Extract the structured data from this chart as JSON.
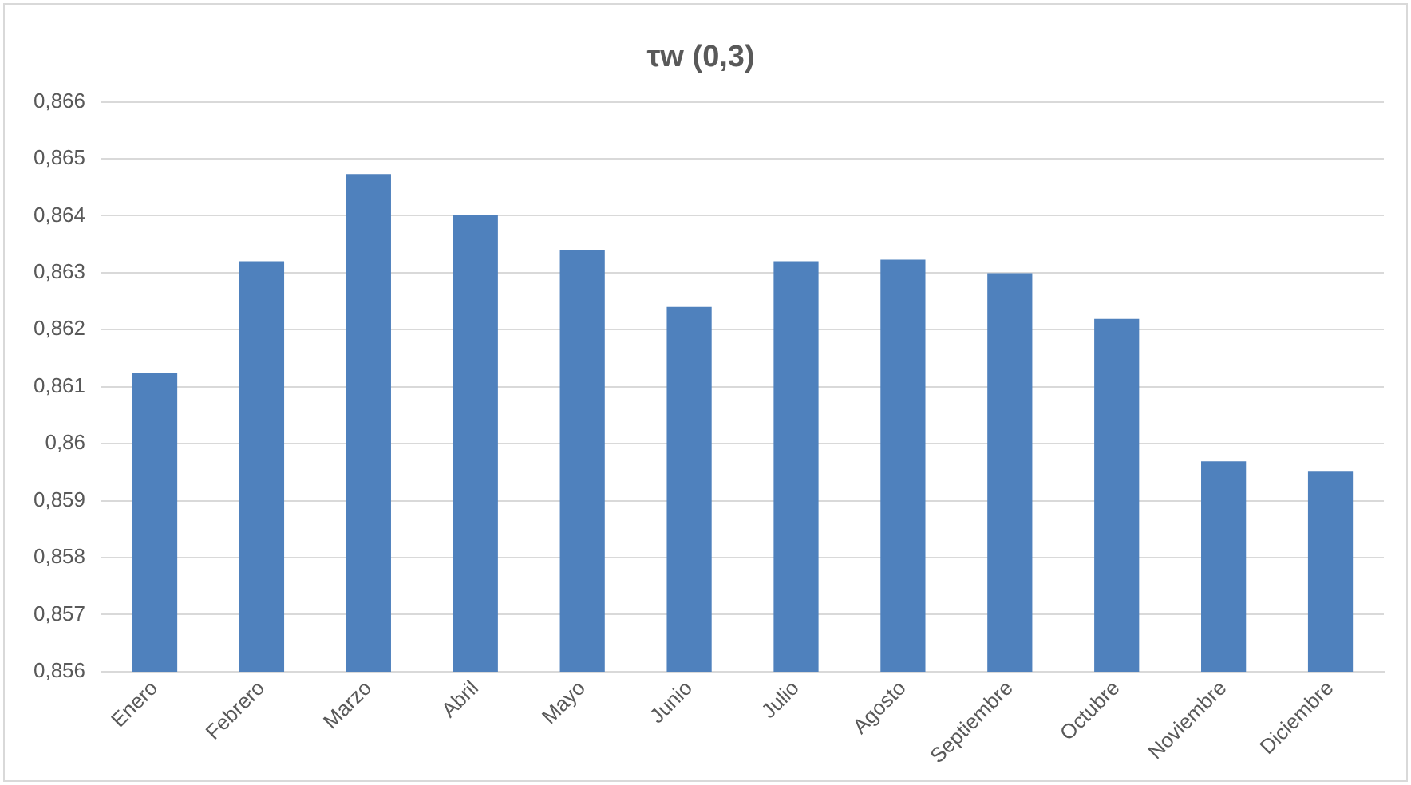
{
  "chart_data": {
    "type": "bar",
    "title": "τw (0,3)",
    "categories": [
      "Enero",
      "Febrero",
      "Marzo",
      "Abril",
      "Mayo",
      "Junio",
      "Julio",
      "Agosto",
      "Septiembre",
      "Octubre",
      "Noviembre",
      "Diciembre"
    ],
    "values": [
      0.86125,
      0.8632,
      0.86473,
      0.86402,
      0.8634,
      0.8624,
      0.8632,
      0.86323,
      0.86299,
      0.86219,
      0.85969,
      0.85951
    ],
    "color": "#4f81bd",
    "ylim": [
      0.856,
      0.866
    ],
    "yticks": [
      {
        "value": 0.856,
        "label": "0,856"
      },
      {
        "value": 0.857,
        "label": "0,857"
      },
      {
        "value": 0.858,
        "label": "0,858"
      },
      {
        "value": 0.859,
        "label": "0,859"
      },
      {
        "value": 0.86,
        "label": "0,86"
      },
      {
        "value": 0.861,
        "label": "0,861"
      },
      {
        "value": 0.862,
        "label": "0,862"
      },
      {
        "value": 0.863,
        "label": "0,863"
      },
      {
        "value": 0.864,
        "label": "0,864"
      },
      {
        "value": 0.865,
        "label": "0,865"
      },
      {
        "value": 0.866,
        "label": "0,866"
      }
    ],
    "grid": "y",
    "legend": false
  }
}
